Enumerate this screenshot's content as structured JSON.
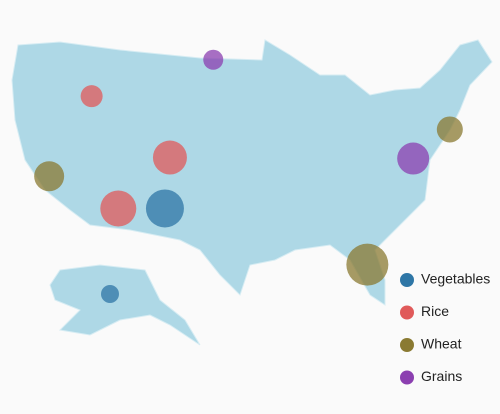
{
  "chart_data": {
    "type": "bubble-map",
    "series": [
      {
        "name": "Vegetables",
        "color": "#2e76a6",
        "lon": [
          -106.5,
          -150
        ],
        "lat": [
          32.8,
          61
        ],
        "size": [
          19,
          9
        ]
      },
      {
        "name": "Rice",
        "color": "#e05a5a",
        "lon": [
          -115.3,
          -105.9,
          -112.1
        ],
        "lat": [
          43.6,
          37.7,
          32.8
        ],
        "size": [
          11,
          17,
          18
        ]
      },
      {
        "name": "Wheat",
        "color": "#8a7a32",
        "lon": [
          -120.4,
          -72.3,
          -82.2
        ],
        "lat": [
          35.9,
          40.4,
          27.4
        ],
        "size": [
          15,
          13,
          21
        ]
      },
      {
        "name": "Grains",
        "color": "#8b3fb0",
        "lon": [
          -100.7,
          -76.7
        ],
        "lat": [
          47.1,
          37.6
        ],
        "size": [
          10,
          16
        ]
      }
    ]
  }
}
